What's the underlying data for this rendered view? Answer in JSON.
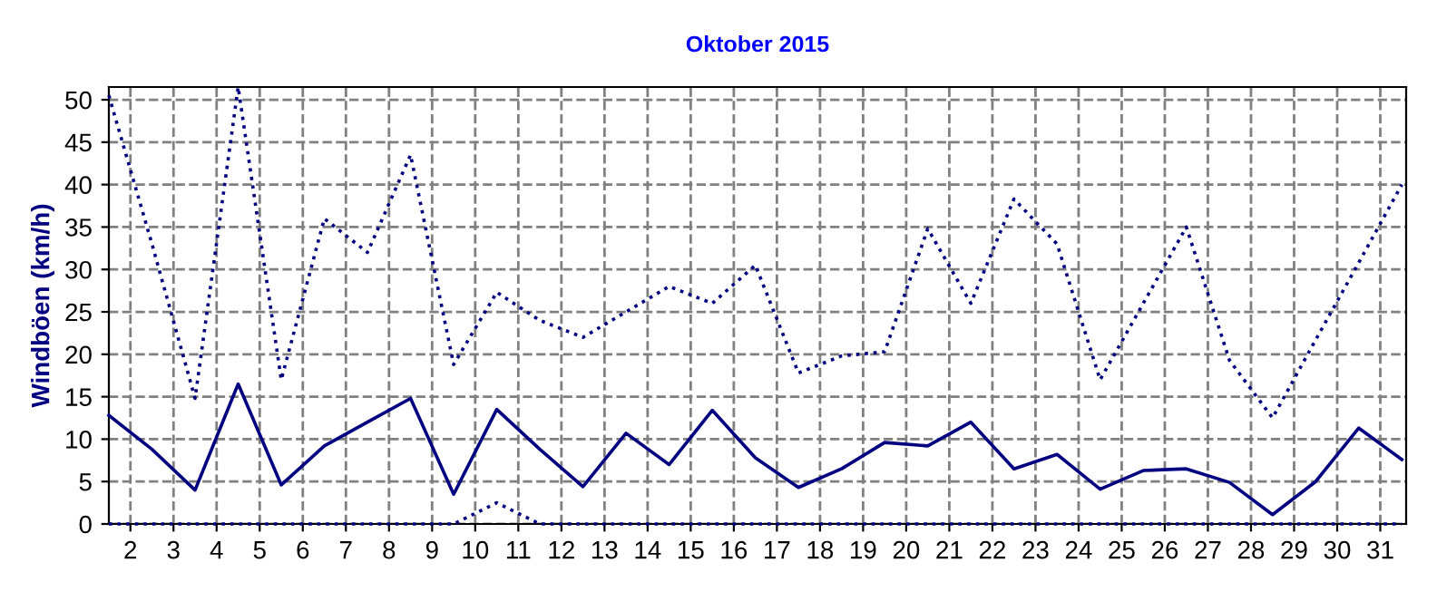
{
  "chart_data": {
    "type": "line",
    "title": "Oktober 2015",
    "ylabel": "Windböen (km/h)",
    "x": [
      1.5,
      2.5,
      3.5,
      4.5,
      5.5,
      6.5,
      7.5,
      8.5,
      9.5,
      10.5,
      11.5,
      12.5,
      13.5,
      14.5,
      15.5,
      16.5,
      17.5,
      18.5,
      19.5,
      20.5,
      21.5,
      22.5,
      23.5,
      24.5,
      25.5,
      26.5,
      27.5,
      28.5,
      29.5,
      30.5,
      31.5
    ],
    "series": [
      {
        "color": "#000080",
        "line_style": "dotted",
        "values": [
          50.5,
          33,
          14.8,
          51.5,
          17,
          36,
          32,
          43.5,
          18.8,
          27.3,
          24,
          22,
          25,
          28,
          26,
          30.5,
          17.8,
          19.8,
          20.3,
          34.8,
          26,
          38.3,
          33,
          17,
          26,
          35,
          19.3,
          12.5,
          21.7,
          30.8,
          40
        ]
      },
      {
        "color": "#000080",
        "line_style": "solid",
        "values": [
          12.8,
          8.8,
          4,
          16.5,
          4.6,
          9.2,
          12,
          14.8,
          3.5,
          13.5,
          8.8,
          4.4,
          10.7,
          7,
          13.4,
          7.8,
          4.3,
          6.5,
          9.6,
          9.2,
          12,
          6.5,
          8.2,
          4.1,
          6.3,
          6.5,
          4.9,
          1.1,
          5,
          11.3,
          7.6
        ]
      },
      {
        "color": "#000080",
        "line_style": "dotted",
        "values": [
          0,
          0,
          0,
          0,
          0,
          0,
          0,
          0,
          0,
          2.5,
          0,
          0,
          0,
          0,
          0,
          0,
          0,
          0,
          0,
          0,
          0,
          0,
          0,
          0,
          0,
          0,
          0,
          0,
          0,
          0,
          0
        ]
      }
    ],
    "xlim": [
      1.5,
      31.6
    ],
    "xticks": [
      2,
      3,
      4,
      5,
      6,
      7,
      8,
      9,
      10,
      11,
      12,
      13,
      14,
      15,
      16,
      17,
      18,
      19,
      20,
      21,
      22,
      23,
      24,
      25,
      26,
      27,
      28,
      29,
      30,
      31
    ],
    "ylim": [
      0,
      51.5
    ],
    "yticks": [
      0,
      5,
      10,
      15,
      20,
      25,
      30,
      35,
      40,
      45,
      50
    ],
    "grid": true
  }
}
